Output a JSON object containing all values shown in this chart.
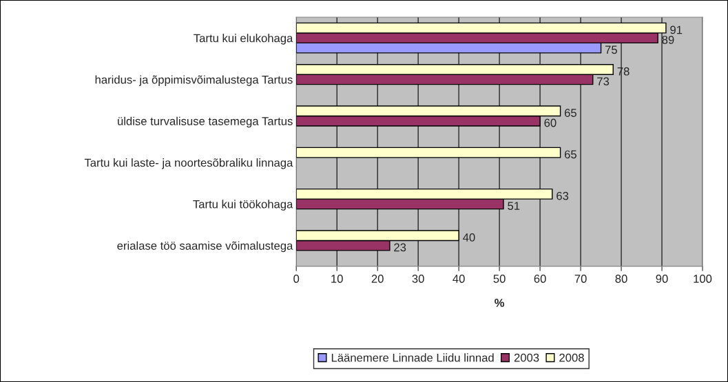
{
  "chart_data": {
    "type": "bar",
    "orientation": "horizontal",
    "xlabel": "%",
    "categories": [
      "Tartu kui elukohaga",
      "haridus- ja õppimisvõimalustega Tartus",
      "üldise turvalisuse tasemega Tartus",
      "Tartu kui laste- ja noortesõbraliku linnaga",
      "Tartu kui töökohaga",
      "erialase töö saamise võimalustega"
    ],
    "series": [
      {
        "name": "Läänemere Linnade Liidu linnad",
        "color": "#9999ff",
        "values": [
          75,
          null,
          null,
          null,
          null,
          null
        ]
      },
      {
        "name": "2003",
        "color": "#993366",
        "values": [
          89,
          73,
          60,
          null,
          51,
          23
        ]
      },
      {
        "name": "2008",
        "color": "#ffffcc",
        "values": [
          91,
          78,
          65,
          65,
          63,
          40
        ]
      }
    ],
    "xlim": [
      0,
      100
    ],
    "xticks": [
      0,
      10,
      20,
      30,
      40,
      50,
      60,
      70,
      80,
      90,
      100
    ],
    "grid": "x",
    "legend": "bottom",
    "data_labels": true
  }
}
